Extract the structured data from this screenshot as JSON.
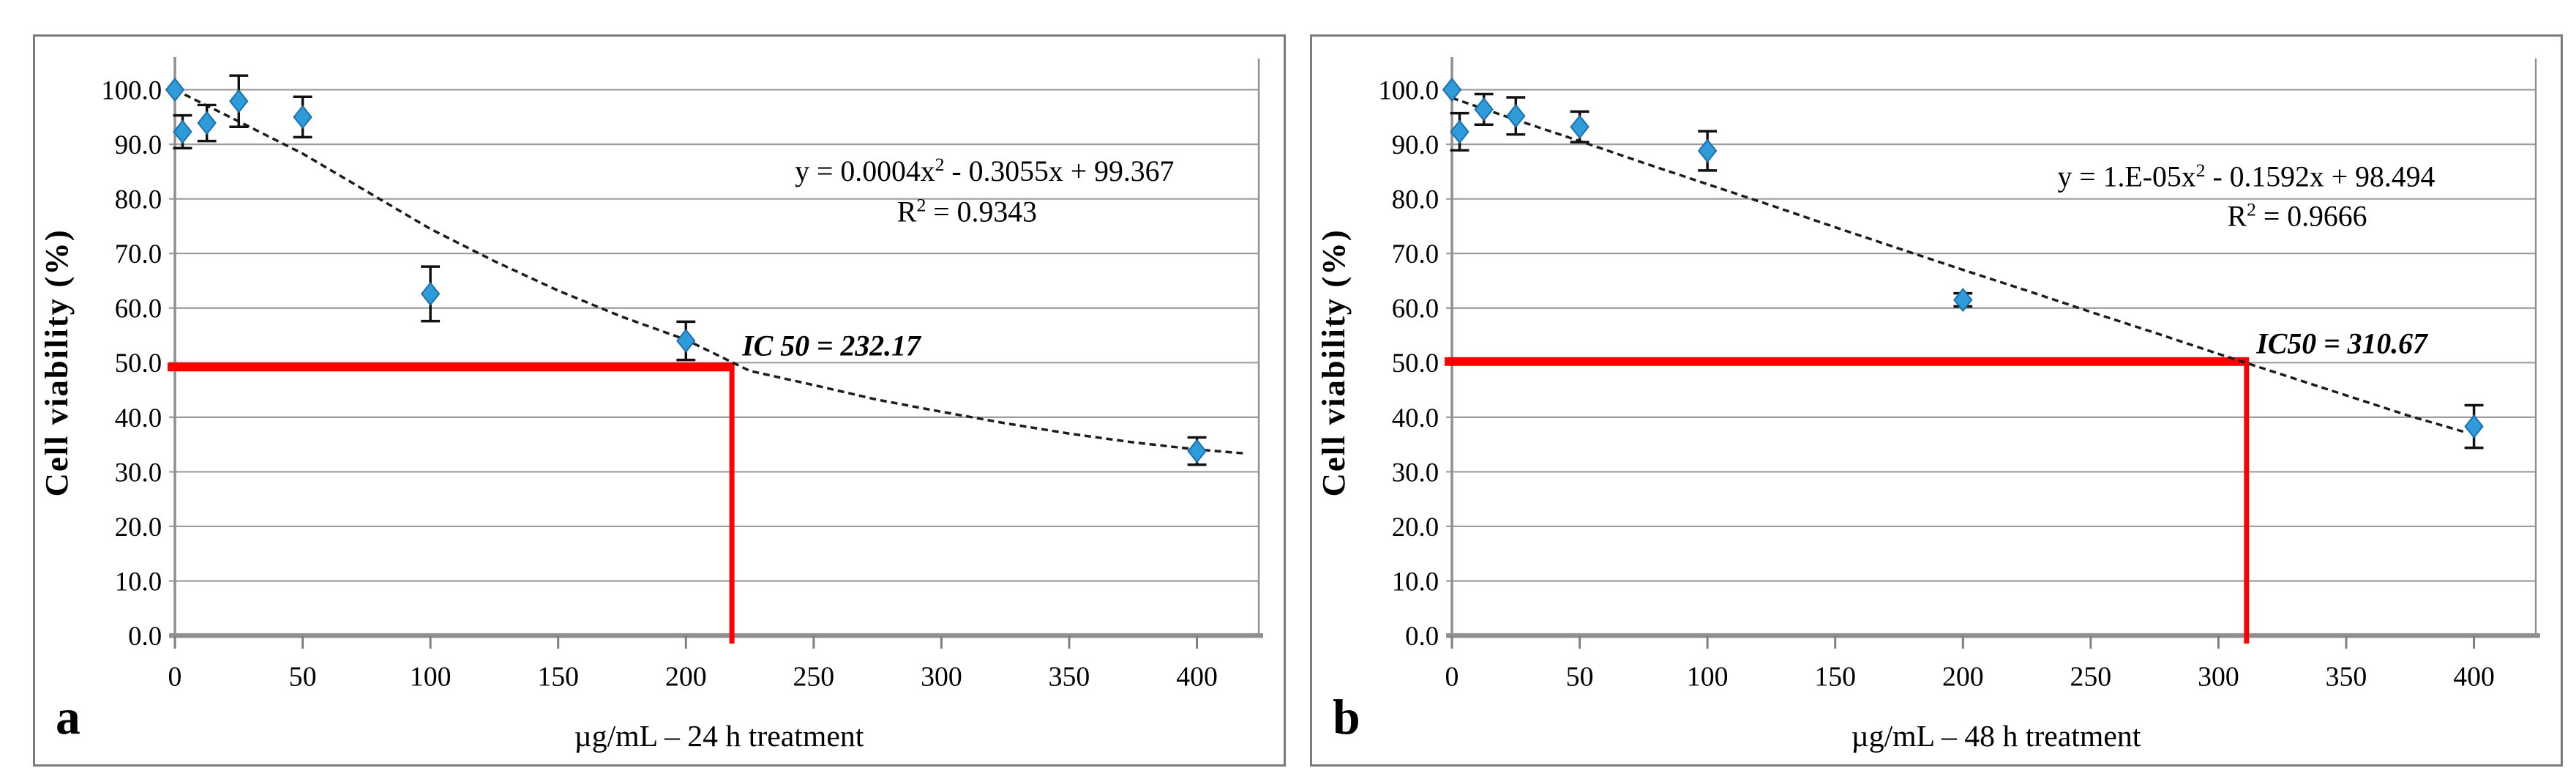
{
  "colors": {
    "marker_fill": "#2F9BD8",
    "marker_stroke": "#1A6FAE",
    "trend": "#1C1C1C",
    "grid": "#9D9D9D",
    "axis": "#8F8F8F",
    "tick": "#7F7F7F",
    "red_reference": "#FE0000",
    "panel_border": "#7B7B7B",
    "text": "#000000"
  },
  "chart_data": [
    {
      "type": "scatter",
      "panel_label": "a",
      "xlabel": "µg/mL – 24 h treatment",
      "ylabel": "Cell viability (%)",
      "xlim": [
        0,
        420
      ],
      "ylim": [
        0,
        105
      ],
      "grid": true,
      "legend": "none",
      "x_ticks": {
        "values": [
          0,
          50,
          100,
          150,
          200,
          250,
          300,
          350,
          400
        ],
        "labels": [
          "0",
          "50",
          "100",
          "150",
          "200",
          "250",
          "300",
          "350",
          "400"
        ]
      },
      "y_ticks": {
        "values": [
          100,
          90,
          80,
          70,
          60,
          50,
          40,
          30,
          20,
          10,
          0
        ],
        "labels": [
          "100.0",
          "90.0",
          "80.0",
          "70.0",
          "60.0",
          "50.0",
          "40.0",
          "30.0",
          "20.0",
          "10.0",
          "0.0"
        ]
      },
      "points": [
        {
          "x": 0,
          "y": 100.0,
          "err": null
        },
        {
          "x": 3,
          "y": 92.3,
          "err": 3.0
        },
        {
          "x": 12.5,
          "y": 93.9,
          "err": 3.3
        },
        {
          "x": 25,
          "y": 97.9,
          "err": 4.7
        },
        {
          "x": 50,
          "y": 95.0,
          "err": 3.7
        },
        {
          "x": 100,
          "y": 62.6,
          "err": 5.0
        },
        {
          "x": 200,
          "y": 54.0,
          "err": 3.5
        },
        {
          "x": 400,
          "y": 33.8,
          "err": 2.5
        }
      ],
      "trend": [
        [
          0,
          100
        ],
        [
          25,
          94.2
        ],
        [
          50,
          88.3
        ],
        [
          75,
          81.4
        ],
        [
          100,
          74.5
        ],
        [
          125,
          68.6
        ],
        [
          150,
          63.2
        ],
        [
          175,
          58.4
        ],
        [
          200,
          54.2
        ],
        [
          225,
          48.5
        ],
        [
          250,
          45.9
        ],
        [
          275,
          43.2
        ],
        [
          300,
          41.0
        ],
        [
          325,
          38.9
        ],
        [
          350,
          37.0
        ],
        [
          375,
          35.4
        ],
        [
          400,
          34.1
        ],
        [
          418,
          33.4
        ]
      ],
      "equation": {
        "pre": "y = 0.0004x",
        "sup": "2",
        "post": " - 0.3055x + 99.367"
      },
      "r_squared": {
        "pre": "R",
        "sup": "2",
        "post": " = 0.9343"
      },
      "ic50": {
        "label": "IC 50 = 232.17",
        "value": 232.17,
        "line_x": 218,
        "line_y": 49.2
      }
    },
    {
      "type": "scatter",
      "panel_label": "b",
      "xlabel": "µg/mL – 48 h treatment",
      "ylabel": "Cell viability (%)",
      "xlim": [
        0,
        420
      ],
      "ylim": [
        0,
        105
      ],
      "grid": true,
      "legend": "none",
      "x_ticks": {
        "values": [
          0,
          50,
          100,
          150,
          200,
          250,
          300,
          350,
          400
        ],
        "labels": [
          "0",
          "50",
          "100",
          "150",
          "200",
          "250",
          "300",
          "350",
          "400"
        ]
      },
      "y_ticks": {
        "values": [
          100,
          90,
          80,
          70,
          60,
          50,
          40,
          30,
          20,
          10,
          0
        ],
        "labels": [
          "100.0",
          "90.0",
          "80.0",
          "70.0",
          "60.0",
          "50.0",
          "40.0",
          "30.0",
          "20.0",
          "10.0",
          "0.0"
        ]
      },
      "points": [
        {
          "x": 0,
          "y": 100.0,
          "err": null
        },
        {
          "x": 3,
          "y": 92.3,
          "err": 3.4
        },
        {
          "x": 12.5,
          "y": 96.4,
          "err": 2.8
        },
        {
          "x": 25,
          "y": 95.2,
          "err": 3.4
        },
        {
          "x": 50,
          "y": 93.2,
          "err": 2.8
        },
        {
          "x": 100,
          "y": 88.8,
          "err": 3.6
        },
        {
          "x": 200,
          "y": 61.5,
          "err": 1.2
        },
        {
          "x": 400,
          "y": 38.3,
          "err": 3.9
        }
      ],
      "trend": [
        [
          0,
          98.5
        ],
        [
          25,
          94.5
        ],
        [
          50,
          90.6
        ],
        [
          75,
          86.6
        ],
        [
          100,
          82.7
        ],
        [
          125,
          78.8
        ],
        [
          150,
          74.8
        ],
        [
          175,
          70.9
        ],
        [
          200,
          67.0
        ],
        [
          225,
          63.2
        ],
        [
          250,
          59.3
        ],
        [
          275,
          55.5
        ],
        [
          300,
          51.6
        ],
        [
          325,
          47.8
        ],
        [
          350,
          44.0
        ],
        [
          375,
          40.2
        ],
        [
          397,
          37.2
        ]
      ],
      "equation": {
        "pre": "y = 1.E-05x",
        "sup": "2",
        "post": " - 0.1592x + 98.494"
      },
      "r_squared": {
        "pre": "R",
        "sup": "2",
        "post": " = 0.9666"
      },
      "ic50": {
        "label": "IC50 = 310.67",
        "value": 310.67,
        "line_x": 311,
        "line_y": 50.2
      }
    }
  ]
}
